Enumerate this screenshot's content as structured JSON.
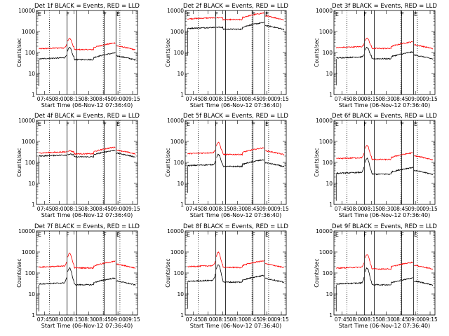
{
  "chart_data": {
    "type": "line",
    "xlabel": "Start Time (06-Nov-12 07:36:40)",
    "ylabel": "Counts/sec",
    "x_ticks": [
      "07:45",
      "08:00",
      "08:15",
      "08:30",
      "08:45",
      "09:00",
      "09:15"
    ],
    "y_ticks": [
      "1",
      "10",
      "100",
      "1000",
      "10000"
    ],
    "y_scale": "log",
    "ylim": [
      1,
      10000
    ],
    "xlim": [
      "07:36:40",
      "09:20:00"
    ],
    "series_colors": {
      "events": "#000000",
      "lld": "#ff0000"
    },
    "solid_lines": [
      "08:08:00",
      "08:18:00",
      "08:46:00",
      "08:58:00"
    ],
    "dotted_lines": [
      "07:50:00",
      "08:45:00",
      "09:02:00"
    ],
    "marker_labels": [
      {
        "text": "E",
        "x": "07:38:00"
      },
      {
        "text": "F",
        "x": "08:07:00"
      },
      {
        "text": "F",
        "x": "08:45:00"
      },
      {
        "text": "E",
        "x": "08:58:30"
      }
    ],
    "panels": [
      {
        "title": "Det 1f BLACK = Events, RED = LLD",
        "events_base": 50,
        "lld_base": 150,
        "events_peak": 3,
        "lld_peak": 2.8
      },
      {
        "title": "Det 2f BLACK = Events, RED = LLD",
        "events_base": 1400,
        "lld_base": 4000,
        "events_peak": 1.0,
        "lld_peak": 1.0
      },
      {
        "title": "Det 3f BLACK = Events, RED = LLD",
        "events_base": 55,
        "lld_base": 170,
        "events_peak": 2.8,
        "lld_peak": 2.6
      },
      {
        "title": "Det 4f BLACK = Events, RED = LLD",
        "events_base": 200,
        "lld_base": 280,
        "events_peak": 1.1,
        "lld_peak": 1.15
      },
      {
        "title": "Det 5f BLACK = Events, RED = LLD",
        "events_base": 70,
        "lld_base": 260,
        "events_peak": 3.0,
        "lld_peak": 3.0
      },
      {
        "title": "Det 6f BLACK = Events, RED = LLD",
        "events_base": 30,
        "lld_base": 150,
        "events_peak": 4.5,
        "lld_peak": 3.8
      },
      {
        "title": "Det 7f BLACK = Events, RED = LLD",
        "events_base": 30,
        "lld_base": 190,
        "events_peak": 5.0,
        "lld_peak": 4.0
      },
      {
        "title": "Det 8f BLACK = Events, RED = LLD",
        "events_base": 40,
        "lld_base": 200,
        "events_peak": 5.5,
        "lld_peak": 4.2
      },
      {
        "title": "Det 9f BLACK = Events, RED = LLD",
        "events_base": 30,
        "lld_base": 170,
        "events_peak": 5.0,
        "lld_peak": 4.0
      }
    ]
  }
}
